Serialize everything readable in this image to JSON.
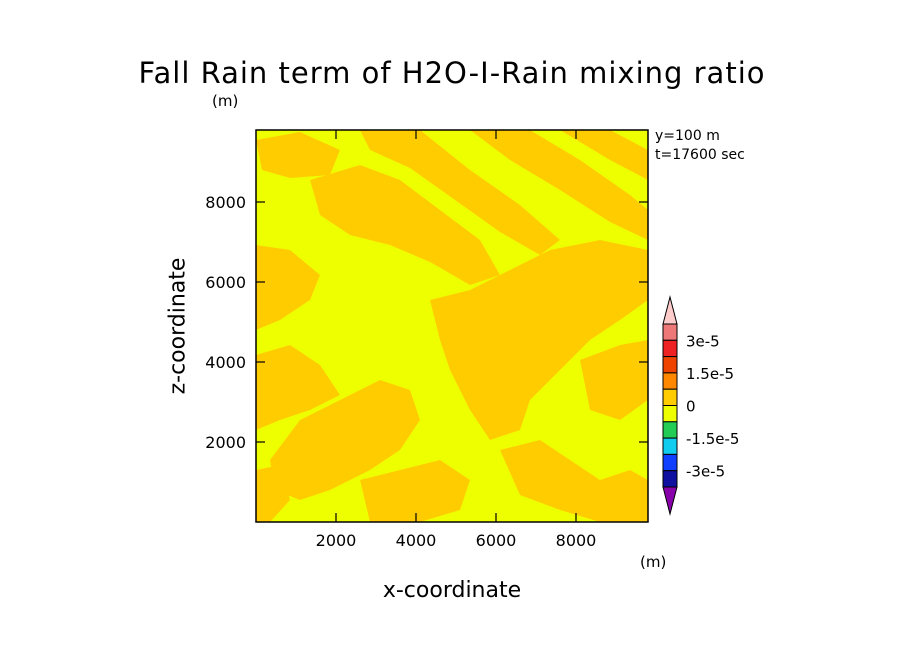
{
  "chart_data": {
    "type": "heatmap",
    "title": "Fall Rain term of H2O-I-Rain mixing ratio",
    "title_unit": "(m)",
    "info": {
      "y": "y=100 m",
      "t": "t=17600 sec"
    },
    "xlabel": "x-coordinate",
    "ylabel": "z-coordinate",
    "xlim": [
      0,
      9800
    ],
    "ylim": [
      0,
      9800
    ],
    "x_ticks": [
      {
        "value": 2000,
        "label": "2000"
      },
      {
        "value": 4000,
        "label": "4000"
      },
      {
        "value": 6000,
        "label": "6000"
      },
      {
        "value": 8000,
        "label": "8000"
      }
    ],
    "y_ticks": [
      {
        "value": 2000,
        "label": "2000"
      },
      {
        "value": 4000,
        "label": "4000"
      },
      {
        "value": 6000,
        "label": "6000"
      },
      {
        "value": 8000,
        "label": "8000"
      }
    ],
    "colorbar": {
      "unit": "(m)",
      "levels": [
        -3e-05,
        -2.25e-05,
        -1.5e-05,
        -7.5e-06,
        0,
        7.5e-06,
        1.5e-05,
        2.25e-05,
        3e-05
      ],
      "colors": [
        "#8800aa",
        "#1010a0",
        "#1040ff",
        "#10ccee",
        "#22cc55",
        "#eeff00",
        "#ffcc00",
        "#ff8800",
        "#ee4400",
        "#ee2222",
        "#ee7777",
        "#ffcccc"
      ],
      "labels": [
        {
          "value": 3e-05,
          "label": "3e-5"
        },
        {
          "value": 1.5e-05,
          "label": "1.5e-5"
        },
        {
          "value": 0,
          "label": "0"
        },
        {
          "value": -1.5e-05,
          "label": "-1.5e-5"
        },
        {
          "value": -3e-05,
          "label": "-3e-5"
        }
      ]
    },
    "field_colors": {
      "zero_band": "#eeff00",
      "small_positive": "#ffcc00"
    },
    "grid": false
  }
}
